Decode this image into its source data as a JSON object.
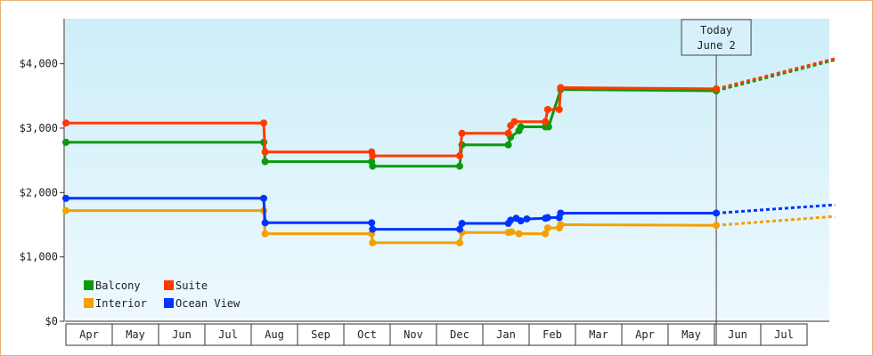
{
  "chart_data": {
    "type": "line",
    "title": "",
    "xlabel": "",
    "ylabel": "",
    "ylim": [
      0,
      4700
    ],
    "y_ticks": [
      {
        "value": 0,
        "label": "$0"
      },
      {
        "value": 1000,
        "label": "$1,000"
      },
      {
        "value": 2000,
        "label": "$2,000"
      },
      {
        "value": 3000,
        "label": "$3,000"
      },
      {
        "value": 4000,
        "label": "$4,000"
      }
    ],
    "months": [
      "Apr",
      "May",
      "Jun",
      "Jul",
      "Aug",
      "Sep",
      "Oct",
      "Nov",
      "Dec",
      "Jan",
      "Feb",
      "Mar",
      "Apr",
      "May",
      "Jun",
      "Jul"
    ],
    "x_range": [
      0,
      16.6
    ],
    "today": {
      "line1": "Today",
      "line2": "June 2",
      "x": 14.04
    },
    "legend_position": "bottom-left",
    "grid": false,
    "series": [
      {
        "name": "Balcony",
        "color": "#0a9a0a",
        "points": [
          [
            0,
            2780
          ],
          [
            4.27,
            2780
          ],
          [
            4.3,
            2480
          ],
          [
            6.6,
            2480
          ],
          [
            6.62,
            2410
          ],
          [
            8.5,
            2410
          ],
          [
            8.55,
            2740
          ],
          [
            9.55,
            2740
          ],
          [
            9.6,
            2860
          ],
          [
            9.78,
            2960
          ],
          [
            9.82,
            3020
          ],
          [
            10.35,
            3020
          ],
          [
            10.42,
            3020
          ],
          [
            10.68,
            3600
          ],
          [
            14.04,
            3580
          ]
        ],
        "projection": [
          [
            14.04,
            3580
          ],
          [
            16.6,
            4060
          ]
        ]
      },
      {
        "name": "Suite",
        "color": "#ff3a00",
        "points": [
          [
            0,
            3080
          ],
          [
            4.27,
            3080
          ],
          [
            4.3,
            2630
          ],
          [
            6.6,
            2630
          ],
          [
            6.62,
            2570
          ],
          [
            8.5,
            2570
          ],
          [
            8.55,
            2920
          ],
          [
            9.55,
            2920
          ],
          [
            9.6,
            3040
          ],
          [
            9.68,
            3100
          ],
          [
            10.35,
            3100
          ],
          [
            10.4,
            3290
          ],
          [
            10.65,
            3290
          ],
          [
            10.68,
            3630
          ],
          [
            14.04,
            3610
          ]
        ],
        "projection": [
          [
            14.04,
            3610
          ],
          [
            16.6,
            4080
          ]
        ]
      },
      {
        "name": "Interior",
        "color": "#f5a000",
        "points": [
          [
            0,
            1720
          ],
          [
            4.27,
            1720
          ],
          [
            4.3,
            1360
          ],
          [
            6.6,
            1360
          ],
          [
            6.62,
            1220
          ],
          [
            8.5,
            1220
          ],
          [
            8.55,
            1380
          ],
          [
            9.55,
            1380
          ],
          [
            9.62,
            1390
          ],
          [
            9.78,
            1360
          ],
          [
            10.35,
            1360
          ],
          [
            10.4,
            1450
          ],
          [
            10.65,
            1450
          ],
          [
            10.68,
            1500
          ],
          [
            14.04,
            1490
          ]
        ],
        "projection": [
          [
            14.04,
            1490
          ],
          [
            16.6,
            1630
          ]
        ]
      },
      {
        "name": "Ocean View",
        "color": "#0033ff",
        "points": [
          [
            0,
            1910
          ],
          [
            4.27,
            1910
          ],
          [
            4.3,
            1530
          ],
          [
            6.6,
            1530
          ],
          [
            6.62,
            1430
          ],
          [
            8.5,
            1430
          ],
          [
            8.55,
            1520
          ],
          [
            9.55,
            1520
          ],
          [
            9.6,
            1570
          ],
          [
            9.72,
            1600
          ],
          [
            9.82,
            1560
          ],
          [
            9.95,
            1590
          ],
          [
            10.35,
            1600
          ],
          [
            10.4,
            1610
          ],
          [
            10.65,
            1610
          ],
          [
            10.68,
            1680
          ],
          [
            14.04,
            1680
          ]
        ],
        "projection": [
          [
            14.04,
            1680
          ],
          [
            16.6,
            1810
          ]
        ]
      }
    ]
  }
}
